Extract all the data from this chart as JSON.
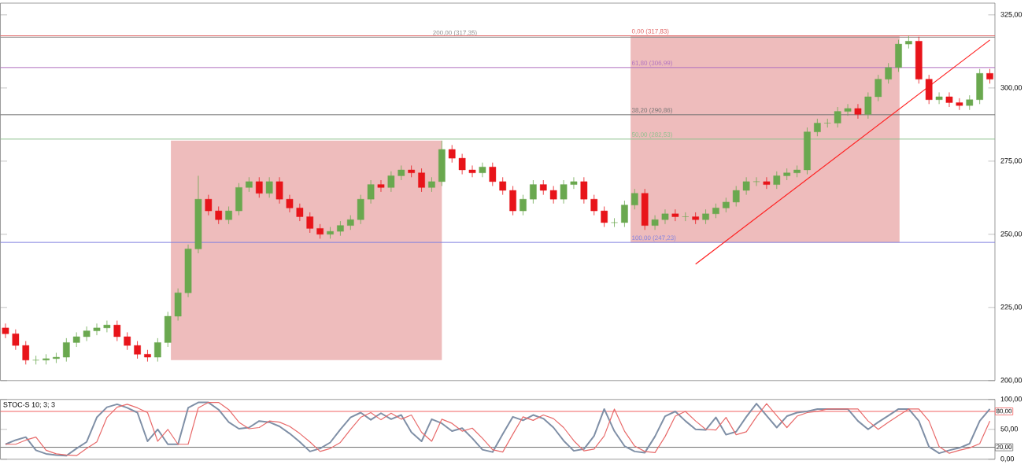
{
  "chart_data": [
    {
      "type": "candlestick",
      "tick_labels": "y",
      "categories": [
        null,
        null,
        null,
        null,
        null,
        null,
        null,
        null,
        null,
        null,
        null,
        null,
        null,
        null,
        null,
        null,
        null,
        null,
        null,
        null,
        null,
        null,
        null,
        null,
        null,
        null,
        null,
        null,
        null,
        null,
        null,
        null,
        null,
        null,
        null,
        null,
        null,
        null,
        null,
        null,
        null,
        null,
        null,
        null,
        null,
        null,
        null,
        null,
        null,
        null,
        null,
        null,
        null,
        null,
        null,
        null,
        null,
        null,
        null,
        null,
        null,
        null,
        null,
        null,
        null,
        null,
        null,
        null,
        null,
        null,
        null,
        null,
        null,
        null,
        null,
        null,
        null,
        null,
        null,
        null,
        null,
        null,
        null,
        null,
        null,
        null,
        null,
        null,
        null,
        null,
        null,
        null,
        null,
        null,
        null,
        null,
        null,
        null
      ],
      "ohlc": [
        [
          218,
          219.5,
          214.5,
          216
        ],
        [
          216,
          217.5,
          210.5,
          212
        ],
        [
          212,
          213.5,
          205.5,
          207
        ],
        [
          207,
          208.5,
          205.5,
          207
        ],
        [
          207,
          209,
          205.5,
          207.5
        ],
        [
          207.5,
          209.5,
          206,
          208
        ],
        [
          208,
          214.5,
          206.5,
          213
        ],
        [
          213,
          216.5,
          211.5,
          215
        ],
        [
          215,
          218.5,
          213.5,
          217
        ],
        [
          217,
          219.5,
          215.5,
          218
        ],
        [
          218,
          220.5,
          216.5,
          219
        ],
        [
          219,
          220.5,
          213.5,
          215
        ],
        [
          215,
          216.5,
          210.5,
          212
        ],
        [
          212,
          213.5,
          207.5,
          209
        ],
        [
          209,
          210.5,
          206.5,
          208
        ],
        [
          208,
          214.5,
          206.5,
          213
        ],
        [
          213,
          223.5,
          211.5,
          222
        ],
        [
          222,
          231.5,
          220.5,
          230
        ],
        [
          230,
          246.5,
          228.5,
          245
        ],
        [
          245,
          270,
          243.5,
          262
        ],
        [
          262,
          263.5,
          256.5,
          258
        ],
        [
          258,
          259.5,
          253.5,
          255
        ],
        [
          255,
          259.5,
          253.5,
          258
        ],
        [
          258,
          267.5,
          256.5,
          266
        ],
        [
          266,
          269.5,
          264.5,
          268
        ],
        [
          268,
          269.5,
          262.5,
          264
        ],
        [
          264,
          269.5,
          262.5,
          268
        ],
        [
          268,
          269.5,
          260.5,
          262
        ],
        [
          262,
          263.5,
          257.5,
          259
        ],
        [
          259,
          260.5,
          254.5,
          256
        ],
        [
          256,
          257.5,
          250.5,
          252
        ],
        [
          252,
          253.5,
          248.5,
          250
        ],
        [
          250,
          252.5,
          248.5,
          251
        ],
        [
          251,
          254.5,
          249.5,
          253
        ],
        [
          253,
          256.5,
          251.5,
          255
        ],
        [
          255,
          263.5,
          253.5,
          262
        ],
        [
          262,
          268.5,
          260.5,
          267
        ],
        [
          267,
          268.5,
          264.5,
          266
        ],
        [
          266,
          271.5,
          264.5,
          270
        ],
        [
          270,
          273.5,
          268.5,
          272
        ],
        [
          272,
          273.5,
          269.5,
          271
        ],
        [
          271,
          272.5,
          264.5,
          266
        ],
        [
          266,
          269.5,
          264.5,
          268
        ],
        [
          268,
          282,
          266.5,
          279
        ],
        [
          279,
          280.5,
          274.5,
          276
        ],
        [
          276,
          277.5,
          270.5,
          272
        ],
        [
          272,
          273.5,
          269.5,
          271
        ],
        [
          271,
          274.5,
          269.5,
          273
        ],
        [
          273,
          274.5,
          266.5,
          268
        ],
        [
          268,
          269.5,
          263.5,
          265
        ],
        [
          265,
          266.5,
          256.5,
          258
        ],
        [
          258,
          263.5,
          256.5,
          262
        ],
        [
          262,
          268.5,
          260.5,
          267
        ],
        [
          267,
          268.5,
          263.5,
          265
        ],
        [
          265,
          266.5,
          260.5,
          262
        ],
        [
          262,
          268.5,
          260.5,
          267
        ],
        [
          267,
          269.5,
          265.5,
          268
        ],
        [
          268,
          269.5,
          260.5,
          262
        ],
        [
          262,
          263.5,
          256.5,
          258
        ],
        [
          258,
          259.5,
          252.5,
          254
        ],
        [
          254,
          255.5,
          252.5,
          254
        ],
        [
          254,
          261.5,
          252.5,
          260
        ],
        [
          260,
          265.5,
          258.5,
          264
        ],
        [
          264,
          265.5,
          251.5,
          253
        ],
        [
          253,
          256.5,
          251.5,
          255
        ],
        [
          255,
          258.5,
          253.5,
          257
        ],
        [
          257,
          258.5,
          254.5,
          256
        ],
        [
          256,
          257.5,
          254.5,
          256
        ],
        [
          256,
          257.5,
          253.5,
          255
        ],
        [
          255,
          258.5,
          253.5,
          257
        ],
        [
          257,
          260.5,
          255.5,
          259
        ],
        [
          259,
          262.5,
          257.5,
          261
        ],
        [
          261,
          266.5,
          259.5,
          265
        ],
        [
          265,
          269.5,
          263.5,
          268
        ],
        [
          268,
          269.5,
          266.5,
          268
        ],
        [
          268,
          269.5,
          265.5,
          267
        ],
        [
          267,
          271.5,
          265.5,
          270
        ],
        [
          270,
          272.5,
          268.5,
          271
        ],
        [
          271,
          273.5,
          269.5,
          272
        ],
        [
          272,
          286.5,
          270.5,
          285
        ],
        [
          285,
          289.5,
          283.5,
          288
        ],
        [
          288,
          289.5,
          286.5,
          288
        ],
        [
          288,
          293.5,
          286.5,
          292
        ],
        [
          292,
          294.5,
          290.5,
          293
        ],
        [
          293,
          294.5,
          289.5,
          291
        ],
        [
          291,
          298.5,
          289.5,
          297
        ],
        [
          297,
          304.5,
          295.5,
          303
        ],
        [
          303,
          308.5,
          301.5,
          307
        ],
        [
          307,
          316.5,
          305.5,
          315
        ],
        [
          315,
          317.83,
          313.5,
          316
        ],
        [
          316,
          317.5,
          301.5,
          303
        ],
        [
          303,
          304.5,
          294.5,
          296
        ],
        [
          296,
          298.5,
          294.5,
          297
        ],
        [
          297,
          298.5,
          293.5,
          295
        ],
        [
          295,
          296.5,
          292.5,
          294
        ],
        [
          294,
          297.5,
          292.5,
          296
        ],
        [
          296,
          306.5,
          294.5,
          305
        ],
        [
          305,
          306.5,
          301.5,
          303
        ]
      ],
      "colors": [
        "#e8141a",
        "#e8141a",
        "#e8141a",
        "#6aa84f",
        "#6aa84f",
        "#6aa84f",
        "#6aa84f",
        "#6aa84f",
        "#6aa84f",
        "#6aa84f",
        "#6aa84f",
        "#e8141a",
        "#e8141a",
        "#e8141a",
        "#e8141a",
        "#6aa84f",
        "#6aa84f",
        "#6aa84f",
        "#6aa84f",
        "#6aa84f",
        "#e8141a",
        "#e8141a",
        "#6aa84f",
        "#6aa84f",
        "#6aa84f",
        "#e8141a",
        "#6aa84f",
        "#e8141a",
        "#e8141a",
        "#e8141a",
        "#e8141a",
        "#e8141a",
        "#6aa84f",
        "#6aa84f",
        "#6aa84f",
        "#6aa84f",
        "#6aa84f",
        "#e8141a",
        "#6aa84f",
        "#6aa84f",
        "#e8141a",
        "#e8141a",
        "#6aa84f",
        "#6aa84f",
        "#e8141a",
        "#e8141a",
        "#e8141a",
        "#6aa84f",
        "#e8141a",
        "#e8141a",
        "#e8141a",
        "#6aa84f",
        "#6aa84f",
        "#e8141a",
        "#e8141a",
        "#6aa84f",
        "#6aa84f",
        "#e8141a",
        "#e8141a",
        "#e8141a",
        "#6aa84f",
        "#6aa84f",
        "#6aa84f",
        "#e8141a",
        "#6aa84f",
        "#6aa84f",
        "#e8141a",
        "#6aa84f",
        "#e8141a",
        "#6aa84f",
        "#6aa84f",
        "#6aa84f",
        "#6aa84f",
        "#6aa84f",
        "#6aa84f",
        "#e8141a",
        "#6aa84f",
        "#6aa84f",
        "#6aa84f",
        "#6aa84f",
        "#6aa84f",
        "#6aa84f",
        "#6aa84f",
        "#6aa84f",
        "#e8141a",
        "#6aa84f",
        "#6aa84f",
        "#6aa84f",
        "#6aa84f",
        "#6aa84f",
        "#e8141a",
        "#e8141a",
        "#6aa84f",
        "#e8141a",
        "#e8141a",
        "#6aa84f",
        "#6aa84f",
        "#e8141a"
      ],
      "series": [
        {
          "type": "line",
          "color": "#ff2020",
          "values": [
            null,
            null,
            null,
            null,
            null,
            null,
            null,
            null,
            null,
            null,
            null,
            null,
            null,
            null,
            null,
            null,
            null,
            null,
            null,
            null,
            null,
            null,
            null,
            null,
            null,
            null,
            null,
            null,
            null,
            null,
            null,
            null,
            null,
            null,
            null,
            null,
            null,
            null,
            null,
            null,
            null,
            null,
            null,
            null,
            null,
            null,
            null,
            null,
            null,
            null,
            null,
            null,
            null,
            null,
            null,
            null,
            null,
            null,
            null,
            null,
            null,
            null,
            null,
            null,
            null,
            null,
            null,
            null,
            239.8,
            null,
            null,
            null,
            null,
            null,
            null,
            null,
            null,
            null,
            null,
            null,
            null,
            null,
            null,
            null,
            null,
            null,
            null,
            null,
            null,
            null,
            null,
            null,
            null,
            null,
            null,
            null,
            null,
            316.4
          ]
        }
      ],
      "ylim": [
        200,
        329
      ],
      "yticks": [
        {
          "value": 200,
          "label": "200,00"
        },
        {
          "value": 225,
          "label": "225,00"
        },
        {
          "value": 250,
          "label": "250,00"
        },
        {
          "value": 275,
          "label": "275,00"
        },
        {
          "value": 300,
          "label": "300,00"
        },
        {
          "value": 325,
          "label": "325,00"
        }
      ],
      "ref_lines": [
        {
          "axis": "y",
          "value": 317.35,
          "label": "200,00 (317,35)",
          "color": "#8c8c8c"
        },
        {
          "axis": "y",
          "value": 317.83,
          "label": "0,00 (317,83)",
          "color": "#e06060"
        },
        {
          "axis": "y",
          "value": 306.99,
          "label": "61,80 (306,99)",
          "color": "#b070c0"
        },
        {
          "axis": "y",
          "value": 290.86,
          "label": "38,20 (290,86)",
          "color": "#707070"
        },
        {
          "axis": "y",
          "value": 282.53,
          "label": "50,00 (282,53)",
          "color": "#8cc08c"
        },
        {
          "axis": "y",
          "value": 247.23,
          "label": "100,00 (247,23)",
          "color": "#8080e0"
        }
      ]
    },
    {
      "type": "line",
      "title": "STOC-S 10; 3; 3",
      "tick_labels": "y",
      "categories": [
        null,
        null,
        null,
        null,
        null,
        null,
        null,
        null,
        null,
        null,
        null,
        null,
        null,
        null,
        null,
        null,
        null,
        null,
        null,
        null,
        null,
        null,
        null,
        null,
        null,
        null,
        null,
        null,
        null,
        null,
        null,
        null,
        null,
        null,
        null,
        null,
        null,
        null,
        null,
        null,
        null,
        null,
        null,
        null,
        null,
        null,
        null,
        null,
        null,
        null,
        null,
        null,
        null,
        null,
        null,
        null,
        null,
        null,
        null,
        null,
        null,
        null,
        null,
        null,
        null,
        null,
        null,
        null,
        null,
        null,
        null,
        null,
        null,
        null,
        null,
        null,
        null,
        null,
        null,
        null,
        null,
        null,
        null,
        null,
        null,
        null,
        null,
        null,
        null,
        null,
        null,
        null,
        null,
        null,
        null,
        null,
        null,
        null
      ],
      "ylim": [
        0,
        100
      ],
      "yticks": [
        {
          "value": 0,
          "label": "0,00"
        },
        {
          "value": 50,
          "label": "50,00"
        },
        {
          "value": 100,
          "label": "100,00"
        }
      ],
      "ref_lines": [
        {
          "axis": "y",
          "value": 80,
          "label": "80,00",
          "color": "#f06060"
        },
        {
          "axis": "y",
          "value": 20,
          "label": "20,00",
          "color": "#707070"
        }
      ],
      "series": [
        {
          "color": "#7f8fa6",
          "values": [
            25,
            32,
            37,
            15,
            9,
            7,
            6,
            18,
            29,
            70,
            87,
            92,
            86,
            78,
            30,
            50,
            25,
            25,
            86,
            95,
            95,
            83,
            62,
            51,
            53,
            64,
            62,
            55,
            43,
            29,
            13,
            18,
            28,
            50,
            70,
            78,
            66,
            77,
            67,
            74,
            45,
            30,
            67,
            60,
            47,
            52,
            35,
            16,
            12,
            42,
            71,
            65,
            74,
            68,
            53,
            31,
            14,
            17,
            39,
            84,
            47,
            22,
            13,
            11,
            38,
            72,
            80,
            64,
            50,
            49,
            70,
            41,
            46,
            71,
            93,
            73,
            53,
            72,
            78,
            80,
            84,
            84,
            84,
            84,
            64,
            50,
            62,
            73,
            84,
            84,
            64,
            21,
            10,
            15,
            19,
            26,
            64,
            84
          ]
        },
        {
          "color": "#e86a6a",
          "values": [
            25,
            25,
            32,
            37,
            15,
            9,
            7,
            6,
            18,
            29,
            70,
            87,
            92,
            86,
            78,
            30,
            50,
            25,
            25,
            86,
            95,
            95,
            83,
            62,
            51,
            53,
            64,
            62,
            55,
            43,
            29,
            13,
            18,
            28,
            50,
            70,
            78,
            66,
            77,
            67,
            74,
            45,
            30,
            67,
            60,
            47,
            52,
            35,
            16,
            12,
            42,
            71,
            65,
            74,
            68,
            53,
            31,
            14,
            17,
            39,
            84,
            47,
            22,
            13,
            11,
            38,
            72,
            80,
            64,
            50,
            49,
            70,
            41,
            46,
            71,
            93,
            73,
            53,
            72,
            78,
            80,
            84,
            84,
            84,
            84,
            64,
            50,
            62,
            73,
            84,
            84,
            64,
            21,
            10,
            15,
            19,
            26,
            64
          ]
        }
      ]
    }
  ]
}
